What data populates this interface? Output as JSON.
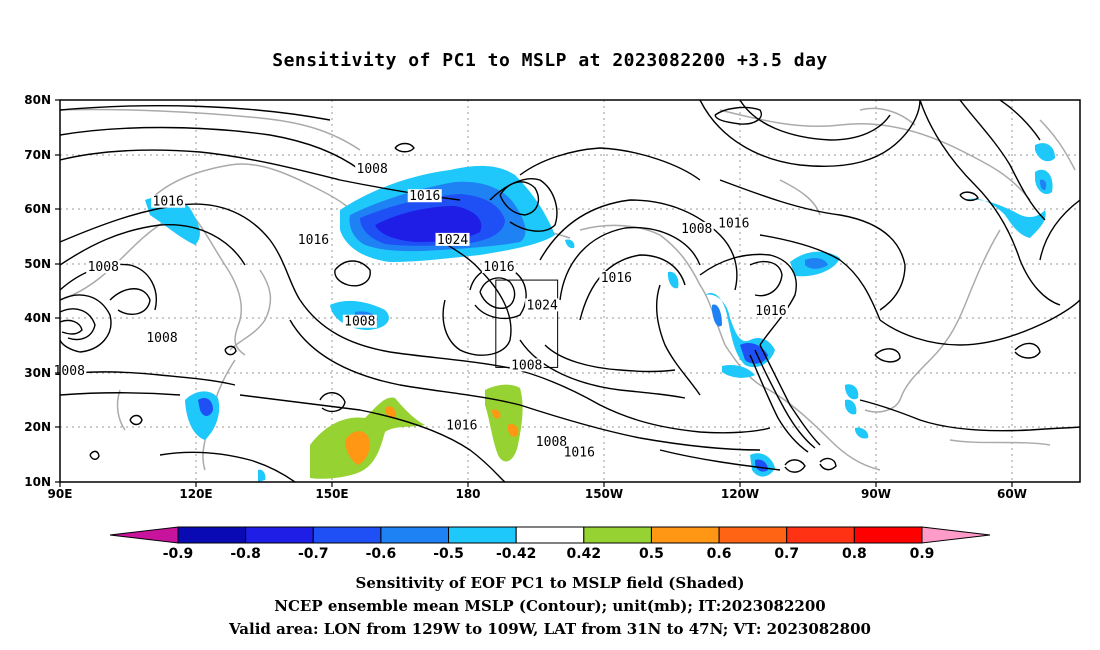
{
  "title": "Sensitivity of PC1 to MSLP at 2023082200 +3.5 day",
  "axes": {
    "lon_labels": [
      "90E",
      "120E",
      "150E",
      "180",
      "150W",
      "120W",
      "90W",
      "60W"
    ],
    "lat_labels": [
      "80N",
      "70N",
      "60N",
      "50N",
      "40N",
      "30N",
      "20N",
      "10N"
    ]
  },
  "contour_labels": [
    {
      "text": "1008",
      "lon": -169,
      "lat": 67
    },
    {
      "text": "1016",
      "lon": 125,
      "lat": 61
    },
    {
      "text": "1016",
      "lon": 172,
      "lat": 54
    },
    {
      "text": "1016",
      "lon": -152,
      "lat": 62
    },
    {
      "text": "1024",
      "lon": -143,
      "lat": 54
    },
    {
      "text": "1016",
      "lon": -128,
      "lat": 49
    },
    {
      "text": "1024",
      "lon": -114,
      "lat": 42
    },
    {
      "text": "1016",
      "lon": -90,
      "lat": 47
    },
    {
      "text": "1008",
      "lon": -64,
      "lat": 56
    },
    {
      "text": "1016",
      "lon": -52,
      "lat": 57
    },
    {
      "text": "1016",
      "lon": -40,
      "lat": 41
    },
    {
      "text": "1008",
      "lon": 104,
      "lat": 49
    },
    {
      "text": "1008",
      "lon": 123,
      "lat": 36
    },
    {
      "text": "1008",
      "lon": 93,
      "lat": 30
    },
    {
      "text": "1008",
      "lon": -173,
      "lat": 39
    },
    {
      "text": "1008",
      "lon": -119,
      "lat": 31
    },
    {
      "text": "1016",
      "lon": -140,
      "lat": 20
    },
    {
      "text": "1008",
      "lon": -111,
      "lat": 17
    },
    {
      "text": "1016",
      "lon": -102,
      "lat": 15
    }
  ],
  "valid_box": {
    "lon_min": -129,
    "lon_max": -109,
    "lat_min": 31,
    "lat_max": 47
  },
  "colorbar": {
    "labels": [
      "-0.9",
      "-0.8",
      "-0.7",
      "-0.6",
      "-0.5",
      "-0.42",
      "0.42",
      "0.5",
      "0.6",
      "0.7",
      "0.8",
      "0.9"
    ],
    "colors": [
      "#c8149c",
      "#0a0ab4",
      "#1e1ee6",
      "#1e50f5",
      "#1e82f5",
      "#1ec8fa",
      "#ffffff",
      "#96d232",
      "#ff9614",
      "#ff6414",
      "#ff3214",
      "#ff0000",
      "#ff9bc8"
    ]
  },
  "footer": {
    "line1": "Sensitivity of EOF PC1 to MSLP field (Shaded)",
    "line2": "NCEP ensemble mean MSLP (Contour); unit(mb); IT:2023082200",
    "line3": "Valid area: LON from 129W to 109W, LAT from 31N to 47N; VT: 2023082800"
  }
}
